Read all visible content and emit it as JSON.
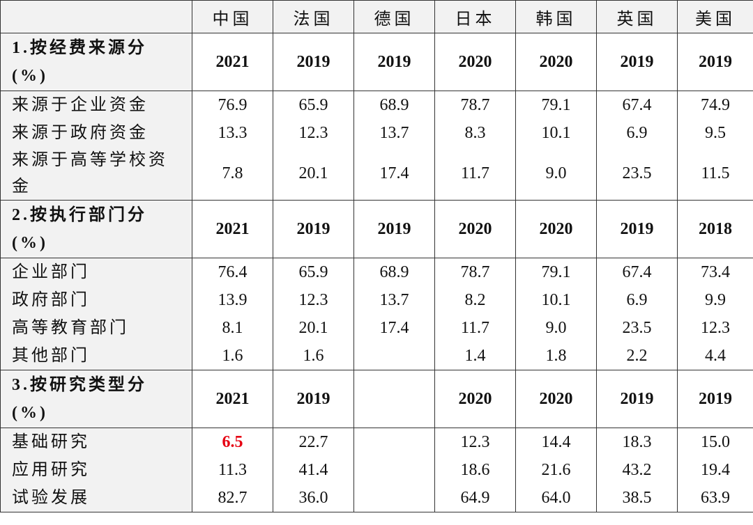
{
  "table": {
    "columns": [
      "中国",
      "法国",
      "德国",
      "日本",
      "韩国",
      "英国",
      "美国"
    ],
    "sections": [
      {
        "title": [
          "1.按经费来源分",
          "(%)"
        ],
        "years": [
          "2021",
          "2019",
          "2019",
          "2020",
          "2020",
          "2019",
          "2019"
        ],
        "rows": [
          {
            "label": "来源于企业资金",
            "values": [
              "76.9",
              "65.9",
              "68.9",
              "78.7",
              "79.1",
              "67.4",
              "74.9"
            ]
          },
          {
            "label": "来源于政府资金",
            "values": [
              "13.3",
              "12.3",
              "13.7",
              "8.3",
              "10.1",
              "6.9",
              "9.5"
            ]
          },
          {
            "label": "来源于高等学校资金",
            "values": [
              "7.8",
              "20.1",
              "17.4",
              "11.7",
              "9.0",
              "23.5",
              "11.5"
            ]
          }
        ]
      },
      {
        "title": [
          "2.按执行部门分",
          "(%)"
        ],
        "years": [
          "2021",
          "2019",
          "2019",
          "2020",
          "2020",
          "2019",
          "2018"
        ],
        "rows": [
          {
            "label": "企业部门",
            "values": [
              "76.4",
              "65.9",
              "68.9",
              "78.7",
              "79.1",
              "67.4",
              "73.4"
            ]
          },
          {
            "label": "政府部门",
            "values": [
              "13.9",
              "12.3",
              "13.7",
              "8.2",
              "10.1",
              "6.9",
              "9.9"
            ]
          },
          {
            "label": "高等教育部门",
            "values": [
              "8.1",
              "20.1",
              "17.4",
              "11.7",
              "9.0",
              "23.5",
              "12.3"
            ]
          },
          {
            "label": "其他部门",
            "values": [
              "1.6",
              "1.6",
              null,
              "1.4",
              "1.8",
              "2.2",
              "4.4"
            ]
          }
        ]
      },
      {
        "title": [
          "3.按研究类型分",
          "(%)"
        ],
        "years": [
          "2021",
          "2019",
          null,
          "2020",
          "2020",
          "2019",
          "2019"
        ],
        "rows": [
          {
            "label": "基础研究",
            "values": [
              "6.5",
              "22.7",
              null,
              "12.3",
              "14.4",
              "18.3",
              "15.0"
            ],
            "highlight": {
              "col": 0,
              "color": "#e60012"
            }
          },
          {
            "label": "应用研究",
            "values": [
              "11.3",
              "41.4",
              null,
              "18.6",
              "21.6",
              "43.2",
              "19.4"
            ]
          },
          {
            "label": "试验发展",
            "values": [
              "82.7",
              "36.0",
              null,
              "64.9",
              "64.0",
              "38.5",
              "63.9"
            ]
          }
        ]
      }
    ]
  }
}
